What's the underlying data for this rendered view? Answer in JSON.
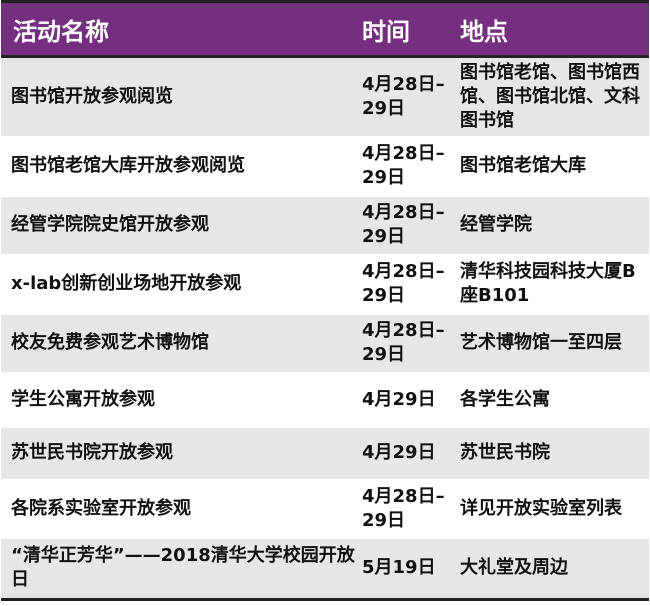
{
  "header": {
    "activity": "活动名称",
    "time": "时间",
    "location": "地点"
  },
  "rows": [
    {
      "activity": "图书馆开放参观阅览",
      "time": "4月28日–29日",
      "location": "图书馆老馆、图书馆西馆、图书馆北馆、文科图书馆"
    },
    {
      "activity": "图书馆老馆大库开放参观阅览",
      "time": "4月28日–29日",
      "location": "图书馆老馆大库"
    },
    {
      "activity": "经管学院院史馆开放参观",
      "time": "4月28日–29日",
      "location": "经管学院"
    },
    {
      "activity": "x-lab创新创业场地开放参观",
      "time": "4月28日–29日",
      "location": "清华科技园科技大厦B座B101"
    },
    {
      "activity": "校友免费参观艺术博物馆",
      "time": "4月28日–29日",
      "location": "艺术博物馆一至四层"
    },
    {
      "activity": "学生公寓开放参观",
      "time": "4月29日",
      "location": "各学生公寓"
    },
    {
      "activity": "苏世民书院开放参观",
      "time": "4月29日",
      "location": "苏世民书院"
    },
    {
      "activity": "各院系实验室开放参观",
      "time": "4月28日–29日",
      "location": "详见开放实验室列表"
    },
    {
      "activity": "“清华正芳华”——2018清华大学校园开放日",
      "time": "5月19日",
      "location": "大礼堂及周边"
    }
  ],
  "colors": {
    "header_bg": "#74307f",
    "stripe": "#e6e6e6"
  }
}
